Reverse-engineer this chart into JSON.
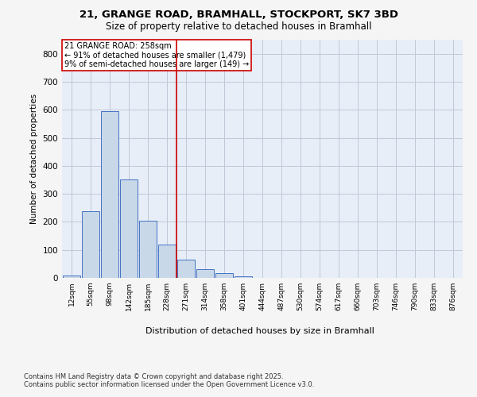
{
  "title_line1": "21, GRANGE ROAD, BRAMHALL, STOCKPORT, SK7 3BD",
  "title_line2": "Size of property relative to detached houses in Bramhall",
  "xlabel": "Distribution of detached houses by size in Bramhall",
  "ylabel": "Number of detached properties",
  "bin_labels": [
    "12sqm",
    "55sqm",
    "98sqm",
    "142sqm",
    "185sqm",
    "228sqm",
    "271sqm",
    "314sqm",
    "358sqm",
    "401sqm",
    "444sqm",
    "487sqm",
    "530sqm",
    "574sqm",
    "617sqm",
    "660sqm",
    "703sqm",
    "746sqm",
    "790sqm",
    "833sqm",
    "876sqm"
  ],
  "bar_values": [
    8,
    238,
    595,
    350,
    205,
    120,
    65,
    30,
    17,
    5,
    0,
    0,
    0,
    0,
    0,
    0,
    0,
    0,
    0,
    0,
    0
  ],
  "bar_color": "#c8d8e8",
  "bar_edge_color": "#4472c4",
  "vline_x": 5.5,
  "vline_color": "#cc0000",
  "annotation_title": "21 GRANGE ROAD: 258sqm",
  "annotation_line2": "← 91% of detached houses are smaller (1,479)",
  "annotation_line3": "9% of semi-detached houses are larger (149) →",
  "annotation_box_color": "#ffffff",
  "annotation_box_edge": "#cc0000",
  "ylim": [
    0,
    850
  ],
  "yticks": [
    0,
    100,
    200,
    300,
    400,
    500,
    600,
    700,
    800
  ],
  "grid_color": "#c0c8d8",
  "background_color": "#e8eef8",
  "fig_background": "#f5f5f5",
  "footer_line1": "Contains HM Land Registry data © Crown copyright and database right 2025.",
  "footer_line2": "Contains public sector information licensed under the Open Government Licence v3.0."
}
